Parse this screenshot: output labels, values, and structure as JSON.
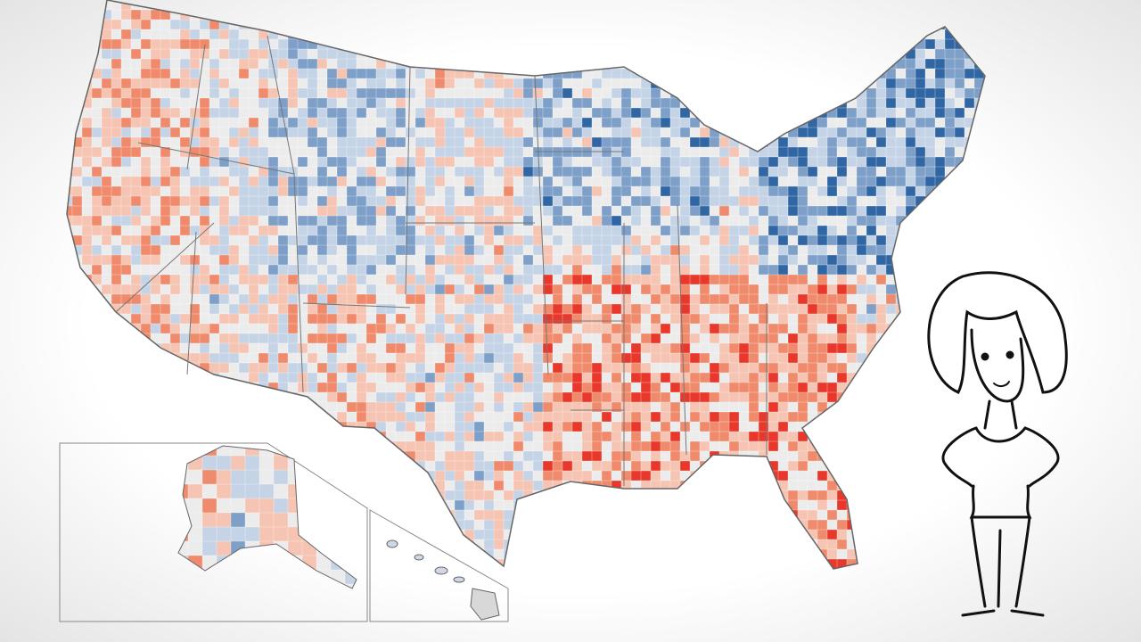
{
  "map": {
    "type": "county choropleth",
    "palette": {
      "strong_red": "#e8382b",
      "red": "#ef8a6c",
      "light_red": "#f6c4b2",
      "neutral": "#ececec",
      "light_blue": "#c4d3e6",
      "blue": "#7d9fc8",
      "strong_blue": "#2f66a3"
    },
    "border_color": "#666666",
    "insets": [
      "alaska",
      "hawaii"
    ]
  },
  "character": {
    "type": "cartoon-woman-line-drawing",
    "stroke": "#111111"
  }
}
